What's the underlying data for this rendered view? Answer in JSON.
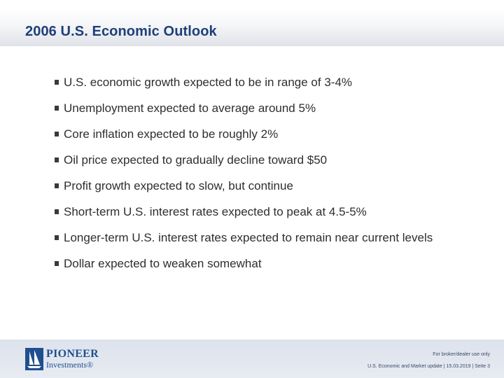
{
  "slide": {
    "title": "2006 U.S. Economic Outlook",
    "bullets": [
      "U.S. economic growth expected to be in range of 3-4%",
      "Unemployment expected to average around 5%",
      "Core inflation expected to be roughly 2%",
      "Oil price expected to gradually decline toward $50",
      "Profit growth expected to slow, but continue",
      "Short-term U.S. interest rates expected to peak at 4.5-5%",
      "Longer-term U.S. interest rates expected to remain near current levels",
      "Dollar expected to weaken somewhat"
    ]
  },
  "footer": {
    "logo_name": "PIONEER",
    "logo_sub": "Investments®",
    "disclaimer": "For broker/dealer use only",
    "info": "U.S. Economic and Market update | 15.03.2019 | Seite 3"
  },
  "colors": {
    "title": "#1f3f7a",
    "text": "#2e2e2e",
    "brand": "#1f4f8f"
  }
}
